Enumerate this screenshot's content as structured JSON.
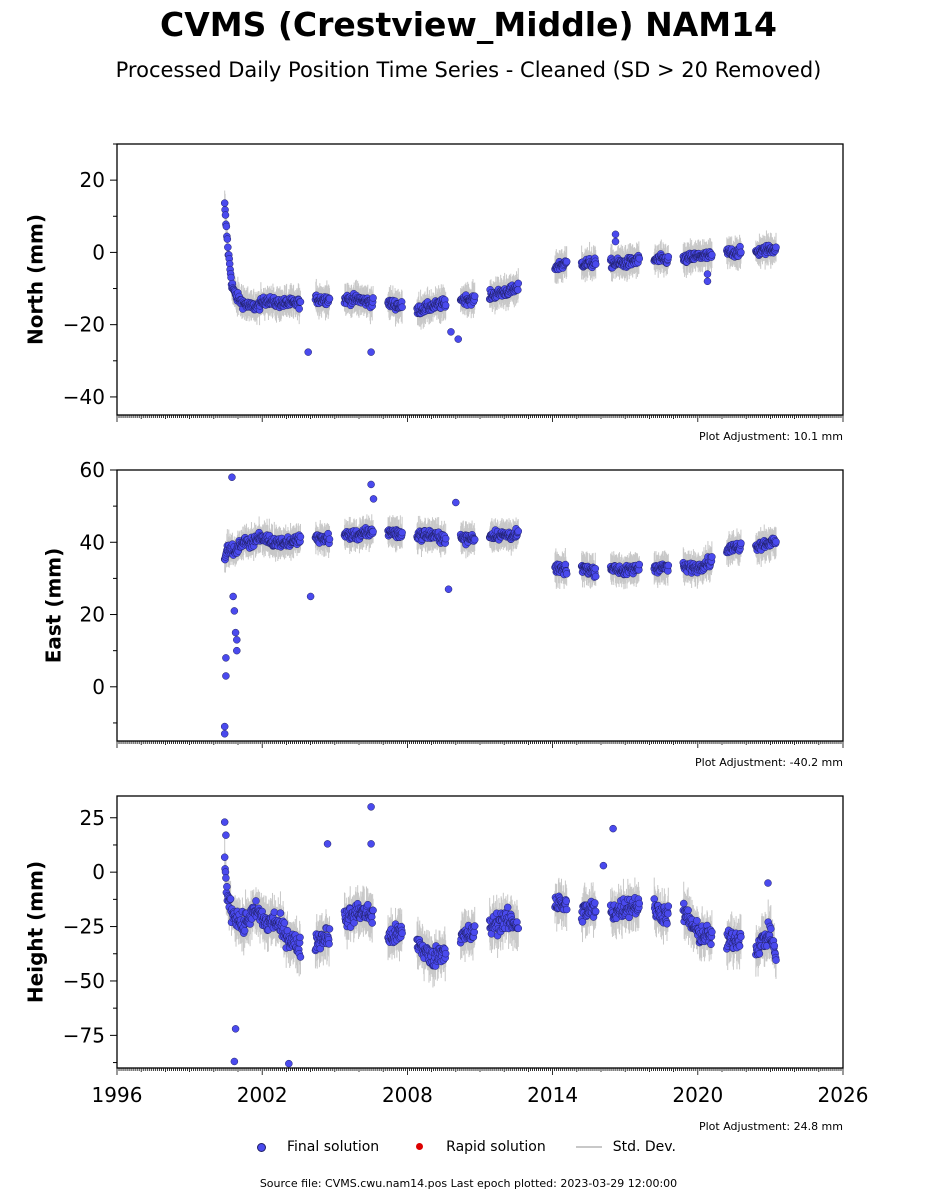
{
  "title": "CVMS (Crestview_Middle) NAM14",
  "subtitle": "Processed Daily Position Time Series - Cleaned (SD > 20 Removed)",
  "legend": {
    "final": "Final solution",
    "rapid": "Rapid solution",
    "std": "Std. Dev."
  },
  "colors": {
    "final_fill": "#4a4aee",
    "final_edge": "#1f1f66",
    "rapid": "#dd0000",
    "std_dev": "#c8c8c8"
  },
  "source": "Source file: CVMS.cwu.nam14.pos  Last epoch plotted: 2023-03-29 12:00:00",
  "chart_data": [
    {
      "type": "scatter",
      "ylabel": "North (mm)",
      "xlim": [
        1996,
        2026
      ],
      "ylim": [
        -45,
        30
      ],
      "yticks": [
        20,
        0,
        -20,
        -40
      ],
      "ytick_labels": [
        "20",
        "0",
        "−20",
        "−40"
      ],
      "adjustment": "Plot Adjustment: 10.1 mm",
      "series": [
        {
          "x": [
            2000.45,
            2000.5,
            2000.6,
            2000.75,
            2000.9,
            2001.05,
            2001.2,
            2001.5,
            2001.8,
            2002.2,
            2002.5,
            2003.1,
            2003.6,
            2004.2,
            2004.8,
            2005.4,
            2006.0,
            2006.6,
            2007.2,
            2007.8,
            2008.4,
            2009.0,
            2009.6,
            2010.2,
            2010.8,
            2011.4,
            2012.0,
            2012.6,
            2013.2,
            2014.1,
            2014.6,
            2015.2,
            2015.8,
            2016.4,
            2017.0,
            2017.6,
            2018.2,
            2018.8,
            2019.4,
            2020.0,
            2020.6,
            2021.2,
            2021.8,
            2022.4,
            2023.0,
            2023.25
          ],
          "y": [
            13,
            8,
            0,
            -9,
            -12,
            -13,
            -14,
            -15,
            -15,
            -13,
            -14,
            -14,
            -14,
            -13,
            -13,
            -13,
            -13,
            -14,
            -14,
            -15,
            -16,
            -15,
            -14,
            -13,
            -13,
            -12,
            -11,
            -10,
            -9,
            -4,
            -3,
            -3,
            -3,
            -3,
            -3,
            -2,
            -2,
            -2,
            -2,
            -1,
            -1,
            0,
            0,
            0,
            1,
            1
          ]
        }
      ],
      "outliers": {
        "x": [
          2003.9,
          2006.5,
          2009.8,
          2010.1,
          2016.6,
          2016.6,
          2020.4,
          2020.4
        ],
        "y": [
          -27.6,
          -27.6,
          -22,
          -24,
          5,
          3,
          -8,
          -6
        ]
      }
    },
    {
      "type": "scatter",
      "ylabel": "East (mm)",
      "xlim": [
        1996,
        2026
      ],
      "ylim": [
        -15,
        60
      ],
      "yticks": [
        60,
        40,
        20,
        0
      ],
      "ytick_labels": [
        "60",
        "40",
        "20",
        "0"
      ],
      "adjustment": "Plot Adjustment: -40.2 mm",
      "series": [
        {
          "x": [
            2000.45,
            2000.5,
            2000.6,
            2000.75,
            2000.9,
            2001.05,
            2001.2,
            2001.5,
            2001.8,
            2002.2,
            2002.5,
            2003.1,
            2003.6,
            2004.2,
            2004.8,
            2005.4,
            2006.0,
            2006.6,
            2007.2,
            2007.8,
            2008.4,
            2009.0,
            2009.6,
            2010.2,
            2010.8,
            2011.4,
            2012.0,
            2012.6,
            2013.2,
            2014.1,
            2014.6,
            2015.2,
            2015.8,
            2016.4,
            2017.0,
            2017.6,
            2018.2,
            2018.8,
            2019.4,
            2020.0,
            2020.6,
            2021.2,
            2021.8,
            2022.4,
            2023.0,
            2023.25
          ],
          "y": [
            36,
            37,
            38,
            38,
            37,
            39,
            40,
            40,
            41,
            41,
            40,
            40,
            41,
            41,
            41,
            42,
            42,
            43,
            43,
            42,
            42,
            42,
            41,
            41,
            41,
            42,
            42,
            42,
            43,
            33,
            32,
            33,
            32,
            33,
            32,
            33,
            33,
            33,
            33,
            33,
            35,
            38,
            39,
            39,
            40,
            40
          ]
        }
      ],
      "outliers": {
        "x": [
          2000.45,
          2000.45,
          2000.5,
          2000.5,
          2000.75,
          2000.85,
          2000.9,
          2000.95,
          2000.95,
          2000.8,
          2006.5,
          2006.6,
          2010.0,
          2009.7,
          2004.0
        ],
        "y": [
          -11,
          -13,
          8,
          3,
          58,
          21,
          15,
          13,
          10,
          25,
          56,
          52,
          51,
          27,
          25
        ]
      }
    },
    {
      "type": "scatter",
      "ylabel": "Height (mm)",
      "xlim": [
        1996,
        2026
      ],
      "ylim": [
        -90,
        35
      ],
      "yticks": [
        25,
        0,
        -25,
        -50,
        -75
      ],
      "ytick_labels": [
        "25",
        "0",
        "−25",
        "−50",
        "−75"
      ],
      "adjustment": "Plot Adjustment: 24.8 mm",
      "series": [
        {
          "x": [
            2000.45,
            2000.5,
            2000.6,
            2000.75,
            2000.9,
            2001.05,
            2001.2,
            2001.5,
            2001.8,
            2002.2,
            2002.5,
            2003.1,
            2003.6,
            2004.2,
            2004.8,
            2005.4,
            2006.0,
            2006.6,
            2007.2,
            2007.8,
            2008.4,
            2009.0,
            2009.6,
            2010.2,
            2010.8,
            2011.4,
            2012.0,
            2012.6,
            2013.2,
            2014.1,
            2014.6,
            2015.2,
            2015.8,
            2016.4,
            2017.0,
            2017.6,
            2018.2,
            2018.8,
            2019.4,
            2020.0,
            2020.6,
            2021.2,
            2021.8,
            2022.4,
            2023.0,
            2023.25
          ],
          "y": [
            5,
            -5,
            -12,
            -18,
            -20,
            -22,
            -25,
            -20,
            -18,
            -24,
            -22,
            -30,
            -35,
            -32,
            -28,
            -22,
            -18,
            -20,
            -30,
            -28,
            -32,
            -40,
            -35,
            -30,
            -28,
            -25,
            -22,
            -24,
            -25,
            -14,
            -16,
            -18,
            -17,
            -19,
            -16,
            -15,
            -17,
            -20,
            -18,
            -28,
            -30,
            -32,
            -30,
            -35,
            -28,
            -40
          ]
        }
      ],
      "outliers": {
        "x": [
          2000.45,
          2000.5,
          2000.9,
          2000.85,
          2003.1,
          2006.5,
          2006.5,
          2004.7,
          2016.5,
          2016.1,
          2022.9
        ],
        "y": [
          23,
          17,
          -72,
          -87,
          -88,
          30,
          13,
          13,
          20,
          3,
          -5
        ]
      }
    }
  ],
  "x_axis": {
    "ticks": [
      1996,
      2002,
      2008,
      2014,
      2020,
      2026
    ],
    "labels": [
      "1996",
      "2002",
      "2008",
      "2014",
      "2020",
      "2026"
    ]
  }
}
